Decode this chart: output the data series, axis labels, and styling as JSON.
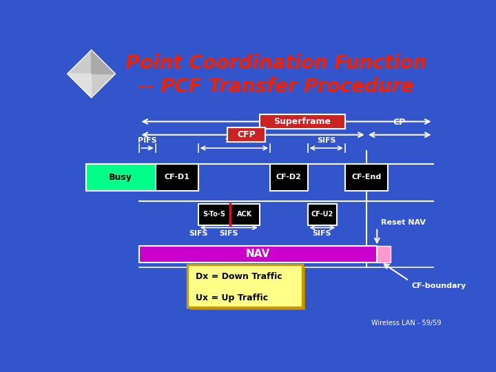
{
  "title_line1": "Point Coordination Function",
  "title_line2": "-- PCF Transfer Procedure",
  "title_color": "#EE2200",
  "bg_color": "#3355CC",
  "superframe_label": "Superframe",
  "cfp_label": "CFP",
  "cp_label": "CP",
  "pifs_label": "PIFS",
  "sifs_label": "SIFS",
  "busy_label": "Busy",
  "busy_color": "#00FF88",
  "cfd1_label": "CF-D1",
  "cfd2_label": "CF-D2",
  "cfend_label": "CF-End",
  "stos_label": "S-To-S",
  "ack_label": "ACK",
  "cfu2_label": "CF-U2",
  "nav_label": "NAV",
  "nav_color": "#CC00CC",
  "nav_small_color": "#FF99CC",
  "reset_nav_label": "Reset NAV",
  "cf_boundary_label": "CF-boundary",
  "dx_label": "Dx = Down Traffic",
  "ux_label": "Ux = Up Traffic",
  "footnote": "Wireless LAN - 59/59",
  "red_box_color": "#CC2222",
  "white": "#FFFFFF",
  "black": "#000000",
  "yellow_box": "#FFFF88",
  "yellow_border": "#CC9900"
}
